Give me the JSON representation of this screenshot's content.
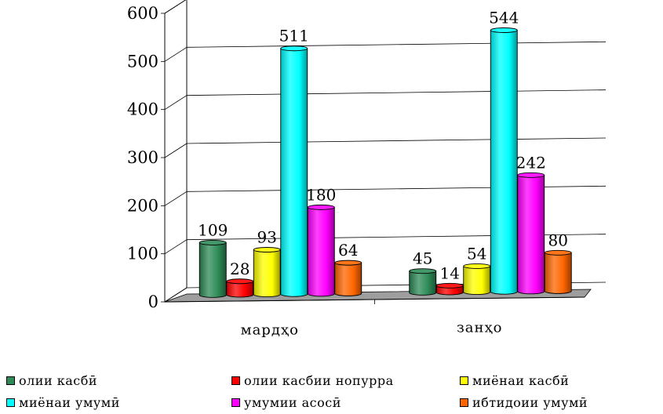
{
  "chart_data": {
    "type": "bar",
    "categories": [
      "мардҳо",
      "занҳо"
    ],
    "series": [
      {
        "name": "олии касбӣ",
        "color": "#2e8b57",
        "values": [
          109,
          45
        ]
      },
      {
        "name": "олии касбии нопурра",
        "color": "#ff0000",
        "values": [
          28,
          14
        ]
      },
      {
        "name": "миёнаи касбӣ",
        "color": "#ffff00",
        "values": [
          93,
          54
        ]
      },
      {
        "name": "миёнаи умумӣ",
        "color": "#00ffff",
        "values": [
          511,
          544
        ]
      },
      {
        "name": "умумии асосӣ",
        "color": "#ff00ff",
        "values": [
          180,
          242
        ]
      },
      {
        "name": "ибтидоии умумӣ",
        "color": "#ff6600",
        "values": [
          64,
          80
        ]
      }
    ],
    "yticks": [
      "0",
      "100",
      "200",
      "300",
      "400",
      "500",
      "600"
    ],
    "ylim": [
      0,
      600
    ],
    "grid": true,
    "legend_position": "bottom",
    "three_d": true
  }
}
